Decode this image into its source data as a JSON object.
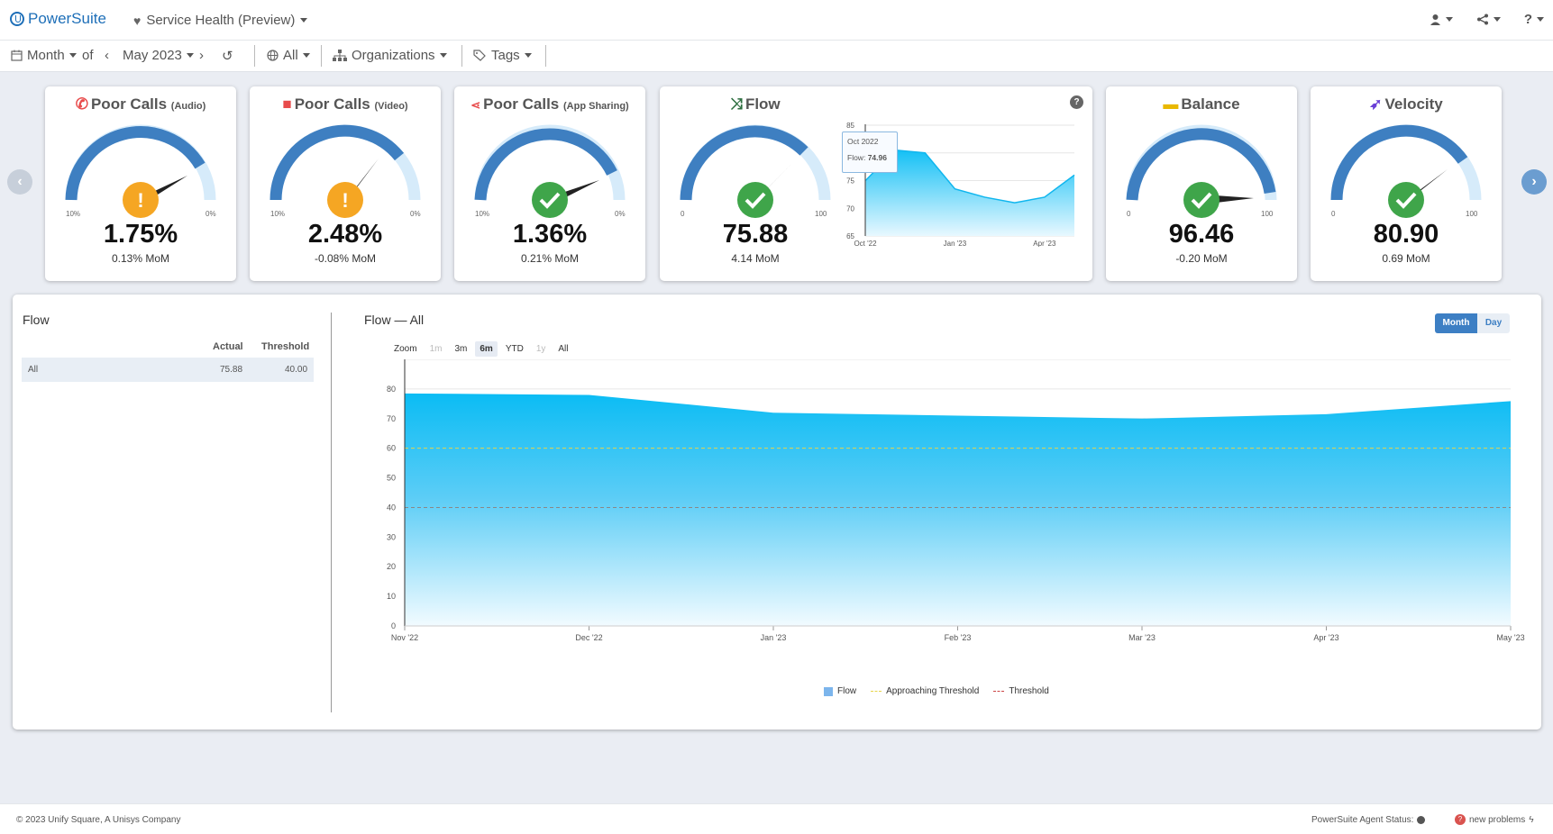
{
  "header": {
    "brand": "PowerSuite",
    "app_name": "Service Health (Preview)"
  },
  "filters": {
    "period": "Month",
    "of_label": "of",
    "date": "May 2023",
    "scope": "All",
    "organizations": "Organizations",
    "tags": "Tags"
  },
  "cards": [
    {
      "title": "Poor Calls",
      "subtitle": "(Audio)",
      "value": "1.75%",
      "mom": "0.13% MoM",
      "min_label": "10%",
      "max_label": "0%",
      "status": "warning",
      "icon": "phone-icon"
    },
    {
      "title": "Poor Calls",
      "subtitle": "(Video)",
      "value": "2.48%",
      "mom": "-0.08% MoM",
      "min_label": "10%",
      "max_label": "0%",
      "status": "warning",
      "icon": "video-camera-icon"
    },
    {
      "title": "Poor Calls",
      "subtitle": "(App Sharing)",
      "value": "1.36%",
      "mom": "0.21% MoM",
      "min_label": "10%",
      "max_label": "0%",
      "status": "ok",
      "icon": "share-icon"
    },
    {
      "title": "Flow",
      "subtitle": "",
      "value": "75.88",
      "mom": "4.14 MoM",
      "min_label": "0",
      "max_label": "100",
      "status": "ok",
      "icon": "shuffle-icon"
    },
    {
      "title": "Balance",
      "subtitle": "",
      "value": "96.46",
      "mom": "-0.20 MoM",
      "min_label": "0",
      "max_label": "100",
      "status": "ok",
      "icon": "balance-icon"
    },
    {
      "title": "Velocity",
      "subtitle": "",
      "value": "80.90",
      "mom": "0.69 MoM",
      "min_label": "0",
      "max_label": "100",
      "status": "ok",
      "icon": "rocket-icon"
    }
  ],
  "mini_chart": {
    "y_ticks": [
      "85",
      "80",
      "75",
      "70",
      "65"
    ],
    "x_ticks": [
      "Oct '22",
      "Jan '23",
      "Apr '23"
    ],
    "tooltip_date": "Oct 2022",
    "tooltip_label": "Flow:",
    "tooltip_value": "74.96"
  },
  "left_table": {
    "title": "Flow",
    "headers": [
      "Actual",
      "Threshold"
    ],
    "rows": [
      {
        "name": "All",
        "actual": "75.88",
        "threshold": "40.00"
      }
    ]
  },
  "main_chart": {
    "title": "Flow — All",
    "toggle": [
      "Month",
      "Day"
    ],
    "zoom_label": "Zoom",
    "zoom_options": [
      "1m",
      "3m",
      "6m",
      "YTD",
      "1y",
      "All"
    ],
    "legend": [
      "Flow",
      "Approaching Threshold",
      "Threshold"
    ]
  },
  "chart_data": [
    {
      "type": "area",
      "x": [
        "Nov '22",
        "Dec '22",
        "Jan '23",
        "Feb '23",
        "Mar '23",
        "Apr '23",
        "May '23"
      ],
      "series": [
        {
          "name": "Flow",
          "values": [
            78.5,
            78.0,
            72.0,
            71.0,
            70.0,
            71.5,
            75.9
          ]
        },
        {
          "name": "Approaching Threshold",
          "values": [
            60,
            60,
            60,
            60,
            60,
            60,
            60
          ]
        },
        {
          "name": "Threshold",
          "values": [
            40,
            40,
            40,
            40,
            40,
            40,
            40
          ]
        }
      ],
      "y_ticks": [
        "0",
        "10",
        "20",
        "30",
        "40",
        "50",
        "60",
        "70",
        "80"
      ],
      "ylim": [
        0,
        90
      ],
      "colors": {
        "flow": "#14c0f5",
        "approaching": "#e6d44a",
        "threshold": "#888888"
      }
    },
    {
      "type": "area",
      "x": [
        "Oct '22",
        "Nov '22",
        "Dec '22",
        "Jan '23",
        "Feb '23",
        "Mar '23",
        "Apr '23",
        "May '23"
      ],
      "series": [
        {
          "name": "Flow",
          "values": [
            74.96,
            80.5,
            80.0,
            73.5,
            72.0,
            71.0,
            72.0,
            76.0
          ]
        }
      ],
      "ylim": [
        65,
        85
      ]
    }
  ],
  "footer": {
    "copyright": "© 2023 Unify Square, A Unisys Company",
    "agent_status": "PowerSuite Agent Status:",
    "problems_count": "?",
    "problems_label": "new problems"
  }
}
